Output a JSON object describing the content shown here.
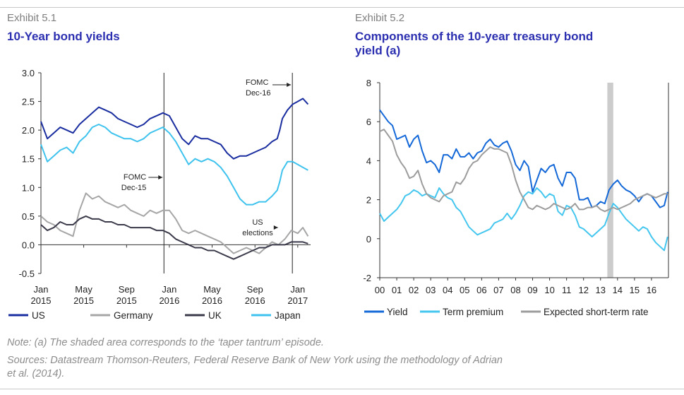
{
  "exhibit1": {
    "label": "Exhibit 5.1",
    "title": "10-Year bond yields"
  },
  "exhibit2": {
    "label": "Exhibit 5.2",
    "title_line1": "Components of the 10-year treasury bond",
    "title_line2": "yield (a)"
  },
  "note": "Note: (a) The shaded area corresponds to the ‘taper tantrum’ episode.",
  "sources_line1": "Sources: Datastream Thomson-Reuters, Federal Reserve Bank of New York using the methodology of Adrian",
  "sources_line2": "et al. (2014).",
  "chart_data": [
    {
      "type": "line",
      "title": "10-Year bond yields",
      "ylim": [
        -0.5,
        3.0
      ],
      "yticks": [
        "3.0",
        "2.5",
        "2.0",
        "1.5",
        "1.0",
        "0.5",
        "0.0",
        "-0.5"
      ],
      "xlim": [
        2015.0,
        2017.1
      ],
      "xticks": [
        {
          "top": "Jan",
          "bottom": "2015",
          "x": 2015.0
        },
        {
          "top": "May",
          "bottom": "2015",
          "x": 2015.333
        },
        {
          "top": "Sep",
          "bottom": "2015",
          "x": 2015.667
        },
        {
          "top": "Jan",
          "bottom": "2016",
          "x": 2016.0
        },
        {
          "top": "May",
          "bottom": "2016",
          "x": 2016.333
        },
        {
          "top": "Sep",
          "bottom": "2016",
          "x": 2016.667
        },
        {
          "top": "Jan",
          "bottom": "2017",
          "x": 2017.0
        }
      ],
      "legend_position": "bottom",
      "annotations": [
        {
          "line1": "FOMC",
          "line2": "Dec-15",
          "x": 2015.958
        },
        {
          "line1": "FOMC",
          "line2": "Dec-16",
          "x": 2016.958
        },
        {
          "line1": "US",
          "line2": "elections",
          "x": 2016.857
        }
      ],
      "series": [
        {
          "name": "US",
          "color": "#1a2ea0",
          "x": [
            2015.0,
            2015.05,
            2015.1,
            2015.15,
            2015.2,
            2015.25,
            2015.3,
            2015.35,
            2015.4,
            2015.45,
            2015.5,
            2015.55,
            2015.6,
            2015.65,
            2015.7,
            2015.75,
            2015.8,
            2015.85,
            2015.9,
            2015.95,
            2016.0,
            2016.05,
            2016.1,
            2016.15,
            2016.2,
            2016.25,
            2016.3,
            2016.35,
            2016.4,
            2016.45,
            2016.5,
            2016.55,
            2016.6,
            2016.65,
            2016.7,
            2016.75,
            2016.8,
            2016.84,
            2016.86,
            2016.88,
            2016.92,
            2016.96,
            2017.0,
            2017.04,
            2017.08
          ],
          "y": [
            2.15,
            1.85,
            1.95,
            2.05,
            2.0,
            1.95,
            2.1,
            2.2,
            2.3,
            2.4,
            2.35,
            2.3,
            2.2,
            2.15,
            2.1,
            2.05,
            2.1,
            2.2,
            2.25,
            2.3,
            2.25,
            2.05,
            1.85,
            1.75,
            1.9,
            1.85,
            1.85,
            1.8,
            1.75,
            1.6,
            1.5,
            1.55,
            1.55,
            1.6,
            1.65,
            1.7,
            1.8,
            1.85,
            2.0,
            2.2,
            2.35,
            2.45,
            2.5,
            2.55,
            2.45
          ]
        },
        {
          "name": "Germany",
          "color": "#a6a6a6",
          "x": [
            2015.0,
            2015.05,
            2015.1,
            2015.15,
            2015.2,
            2015.25,
            2015.3,
            2015.35,
            2015.4,
            2015.45,
            2015.5,
            2015.55,
            2015.6,
            2015.65,
            2015.7,
            2015.75,
            2015.8,
            2015.85,
            2015.9,
            2015.95,
            2016.0,
            2016.05,
            2016.1,
            2016.15,
            2016.2,
            2016.25,
            2016.3,
            2016.35,
            2016.4,
            2016.45,
            2016.5,
            2016.55,
            2016.6,
            2016.65,
            2016.7,
            2016.75,
            2016.8,
            2016.85,
            2016.9,
            2016.95,
            2017.0,
            2017.04,
            2017.08
          ],
          "y": [
            0.5,
            0.4,
            0.35,
            0.25,
            0.2,
            0.15,
            0.6,
            0.9,
            0.8,
            0.85,
            0.75,
            0.7,
            0.65,
            0.7,
            0.6,
            0.55,
            0.5,
            0.6,
            0.55,
            0.6,
            0.6,
            0.45,
            0.25,
            0.2,
            0.25,
            0.2,
            0.15,
            0.1,
            0.05,
            -0.05,
            -0.15,
            -0.1,
            -0.05,
            -0.1,
            -0.15,
            -0.05,
            0.05,
            0.0,
            0.1,
            0.25,
            0.2,
            0.3,
            0.15
          ]
        },
        {
          "name": "UK",
          "color": "#3a3a4a",
          "x": [
            2015.0,
            2015.05,
            2015.1,
            2015.15,
            2015.2,
            2015.25,
            2015.3,
            2015.35,
            2015.4,
            2015.45,
            2015.5,
            2015.55,
            2015.6,
            2015.65,
            2015.7,
            2015.75,
            2015.8,
            2015.85,
            2015.9,
            2015.95,
            2016.0,
            2016.05,
            2016.1,
            2016.15,
            2016.2,
            2016.25,
            2016.3,
            2016.35,
            2016.4,
            2016.45,
            2016.5,
            2016.55,
            2016.6,
            2016.65,
            2016.7,
            2016.75,
            2016.8,
            2016.85,
            2016.9,
            2016.95,
            2017.0,
            2017.04,
            2017.08
          ],
          "y": [
            0.35,
            0.25,
            0.3,
            0.4,
            0.35,
            0.35,
            0.45,
            0.5,
            0.45,
            0.45,
            0.4,
            0.4,
            0.35,
            0.35,
            0.3,
            0.3,
            0.3,
            0.3,
            0.25,
            0.25,
            0.2,
            0.1,
            0.05,
            0.0,
            -0.05,
            -0.05,
            -0.1,
            -0.1,
            -0.15,
            -0.2,
            -0.25,
            -0.2,
            -0.15,
            -0.1,
            -0.05,
            -0.05,
            0.0,
            0.0,
            0.0,
            0.05,
            0.05,
            0.05,
            0.02
          ]
        },
        {
          "name": "Japan",
          "color": "#3fc3ee",
          "x": [
            2015.0,
            2015.05,
            2015.1,
            2015.15,
            2015.2,
            2015.25,
            2015.3,
            2015.35,
            2015.4,
            2015.45,
            2015.5,
            2015.55,
            2015.6,
            2015.65,
            2015.7,
            2015.75,
            2015.8,
            2015.85,
            2015.9,
            2015.95,
            2016.0,
            2016.05,
            2016.1,
            2016.15,
            2016.2,
            2016.25,
            2016.3,
            2016.35,
            2016.4,
            2016.45,
            2016.5,
            2016.55,
            2016.6,
            2016.65,
            2016.7,
            2016.75,
            2016.8,
            2016.84,
            2016.86,
            2016.88,
            2016.92,
            2016.96,
            2017.0,
            2017.04,
            2017.08
          ],
          "y": [
            1.75,
            1.45,
            1.55,
            1.65,
            1.7,
            1.6,
            1.8,
            1.9,
            2.05,
            2.1,
            2.05,
            1.95,
            1.9,
            1.85,
            1.85,
            1.8,
            1.85,
            1.95,
            2.0,
            2.05,
            1.95,
            1.8,
            1.6,
            1.4,
            1.5,
            1.45,
            1.5,
            1.45,
            1.35,
            1.2,
            1.0,
            0.8,
            0.7,
            0.7,
            0.75,
            0.75,
            0.85,
            0.95,
            1.1,
            1.3,
            1.45,
            1.45,
            1.4,
            1.35,
            1.3
          ]
        }
      ]
    },
    {
      "type": "line",
      "title": "Components of the 10-year treasury bond yield (a)",
      "ylim": [
        -2,
        8
      ],
      "yticks": [
        "8",
        "6",
        "4",
        "2",
        "0",
        "-2"
      ],
      "xlim": [
        2000,
        2017
      ],
      "xticks": [
        "00",
        "01",
        "02",
        "03",
        "04",
        "05",
        "06",
        "07",
        "08",
        "09",
        "10",
        "11",
        "12",
        "13",
        "14",
        "15",
        "16"
      ],
      "shaded_span": [
        2013.4,
        2013.75
      ],
      "legend_position": "bottom",
      "series": [
        {
          "name": "Yield",
          "color": "#1468d8",
          "x": [
            2000.0,
            2000.25,
            2000.5,
            2000.75,
            2001.0,
            2001.25,
            2001.5,
            2001.75,
            2002.0,
            2002.25,
            2002.5,
            2002.75,
            2003.0,
            2003.25,
            2003.5,
            2003.75,
            2004.0,
            2004.25,
            2004.5,
            2004.75,
            2005.0,
            2005.25,
            2005.5,
            2005.75,
            2006.0,
            2006.25,
            2006.5,
            2006.75,
            2007.0,
            2007.25,
            2007.5,
            2007.75,
            2008.0,
            2008.25,
            2008.5,
            2008.75,
            2009.0,
            2009.25,
            2009.5,
            2009.75,
            2010.0,
            2010.25,
            2010.5,
            2010.75,
            2011.0,
            2011.25,
            2011.5,
            2011.75,
            2012.0,
            2012.25,
            2012.5,
            2012.75,
            2013.0,
            2013.25,
            2013.5,
            2013.75,
            2014.0,
            2014.25,
            2014.5,
            2014.75,
            2015.0,
            2015.25,
            2015.5,
            2015.75,
            2016.0,
            2016.25,
            2016.5,
            2016.75,
            2016.95
          ],
          "y": [
            6.6,
            6.3,
            6.0,
            5.8,
            5.1,
            5.2,
            5.3,
            4.7,
            5.1,
            5.3,
            4.5,
            3.9,
            4.0,
            3.8,
            3.4,
            4.3,
            4.3,
            4.1,
            4.6,
            4.2,
            4.2,
            4.4,
            4.1,
            4.4,
            4.5,
            4.9,
            5.1,
            4.8,
            4.7,
            4.9,
            5.0,
            4.5,
            3.8,
            3.5,
            4.0,
            3.7,
            2.4,
            3.0,
            3.6,
            3.4,
            3.7,
            3.8,
            3.1,
            2.7,
            3.4,
            3.4,
            3.1,
            2.0,
            2.0,
            2.1,
            1.6,
            1.7,
            1.9,
            1.8,
            2.5,
            2.8,
            3.0,
            2.7,
            2.5,
            2.4,
            2.2,
            1.9,
            2.2,
            2.3,
            2.2,
            1.9,
            1.6,
            1.7,
            2.4
          ]
        },
        {
          "name": "Term premium",
          "color": "#44c6ef",
          "x": [
            2000.0,
            2000.25,
            2000.5,
            2000.75,
            2001.0,
            2001.25,
            2001.5,
            2001.75,
            2002.0,
            2002.25,
            2002.5,
            2002.75,
            2003.0,
            2003.25,
            2003.5,
            2003.75,
            2004.0,
            2004.25,
            2004.5,
            2004.75,
            2005.0,
            2005.25,
            2005.5,
            2005.75,
            2006.0,
            2006.25,
            2006.5,
            2006.75,
            2007.0,
            2007.25,
            2007.5,
            2007.75,
            2008.0,
            2008.25,
            2008.5,
            2008.75,
            2009.0,
            2009.25,
            2009.5,
            2009.75,
            2010.0,
            2010.25,
            2010.5,
            2010.75,
            2011.0,
            2011.25,
            2011.5,
            2011.75,
            2012.0,
            2012.25,
            2012.5,
            2012.75,
            2013.0,
            2013.25,
            2013.5,
            2013.75,
            2014.0,
            2014.25,
            2014.5,
            2014.75,
            2015.0,
            2015.25,
            2015.5,
            2015.75,
            2016.0,
            2016.25,
            2016.5,
            2016.75,
            2016.95
          ],
          "y": [
            1.3,
            0.9,
            1.1,
            1.3,
            1.5,
            1.8,
            2.2,
            2.3,
            2.5,
            2.4,
            2.2,
            2.3,
            2.2,
            2.1,
            2.6,
            2.3,
            2.1,
            2.0,
            1.6,
            1.4,
            1.0,
            0.6,
            0.4,
            0.2,
            0.3,
            0.4,
            0.5,
            0.8,
            0.9,
            1.0,
            1.3,
            1.0,
            1.3,
            1.7,
            2.2,
            2.4,
            2.3,
            2.6,
            2.4,
            2.1,
            2.3,
            2.2,
            1.4,
            1.2,
            1.7,
            1.6,
            1.2,
            0.6,
            0.5,
            0.3,
            0.1,
            0.3,
            0.5,
            0.7,
            1.3,
            1.8,
            1.6,
            1.3,
            1.0,
            0.8,
            0.6,
            0.4,
            0.6,
            0.5,
            0.1,
            -0.2,
            -0.4,
            -0.6,
            0.1
          ]
        },
        {
          "name": "Expected short-term rate",
          "color": "#9c9c9c",
          "x": [
            2000.0,
            2000.25,
            2000.5,
            2000.75,
            2001.0,
            2001.25,
            2001.5,
            2001.75,
            2002.0,
            2002.25,
            2002.5,
            2002.75,
            2003.0,
            2003.25,
            2003.5,
            2003.75,
            2004.0,
            2004.25,
            2004.5,
            2004.75,
            2005.0,
            2005.25,
            2005.5,
            2005.75,
            2006.0,
            2006.25,
            2006.5,
            2006.75,
            2007.0,
            2007.25,
            2007.5,
            2007.75,
            2008.0,
            2008.25,
            2008.5,
            2008.75,
            2009.0,
            2009.25,
            2009.5,
            2009.75,
            2010.0,
            2010.25,
            2010.5,
            2010.75,
            2011.0,
            2011.25,
            2011.5,
            2011.75,
            2012.0,
            2012.25,
            2012.5,
            2012.75,
            2013.0,
            2013.25,
            2013.5,
            2013.75,
            2014.0,
            2014.25,
            2014.5,
            2014.75,
            2015.0,
            2015.25,
            2015.5,
            2015.75,
            2016.0,
            2016.25,
            2016.5,
            2016.75,
            2016.95
          ],
          "y": [
            5.5,
            5.6,
            5.3,
            5.0,
            4.3,
            3.9,
            3.6,
            3.1,
            3.2,
            3.5,
            2.8,
            2.3,
            2.1,
            2.0,
            1.9,
            2.2,
            2.3,
            2.4,
            2.9,
            2.8,
            3.1,
            3.6,
            3.9,
            4.0,
            4.3,
            4.5,
            4.7,
            4.6,
            4.6,
            4.5,
            4.4,
            3.8,
            3.0,
            2.4,
            2.0,
            1.6,
            1.5,
            1.7,
            1.6,
            1.5,
            1.6,
            1.8,
            1.7,
            1.6,
            1.5,
            1.6,
            1.8,
            1.5,
            1.5,
            1.6,
            1.6,
            1.7,
            1.5,
            1.4,
            1.5,
            1.6,
            1.5,
            1.6,
            1.7,
            1.8,
            2.0,
            2.1,
            2.2,
            2.3,
            2.2,
            2.1,
            2.2,
            2.3,
            2.3
          ]
        }
      ]
    }
  ]
}
